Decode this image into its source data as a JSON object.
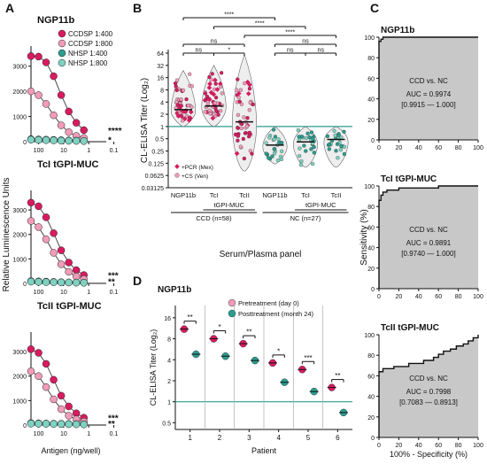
{
  "colors": {
    "magenta": "#D81B60",
    "pink": "#F19CB8",
    "teal": "#2A9D8F",
    "lightteal": "#7FD1C1",
    "gray": "#c8c8c8",
    "axis": "#111111"
  },
  "chart_data": [
    {
      "panel": "A",
      "type": "line",
      "ylabel": "Relative Luminescence Units",
      "xlabel": "Antigen (ng/well)",
      "x_scale": "log",
      "x_ticks": [
        "100",
        "10",
        "1",
        "0.1"
      ],
      "legend": [
        "CCDSP 1:400",
        "CCDSP 1:800",
        "NHSP 1:400",
        "NHSP 1:800"
      ],
      "subplots": [
        {
          "title": "NGP11b",
          "y_ticks": [
            "0",
            "1000",
            "2000",
            "3000"
          ],
          "ylim": [
            0,
            3800
          ],
          "x": [
            200,
            100,
            50,
            25,
            12.5,
            6.25,
            3.125,
            1.56
          ],
          "series": [
            {
              "name": "CCDSP 1:400",
              "values": [
                3400,
                3380,
                3150,
                2600,
                1850,
                1200,
                750,
                460
              ]
            },
            {
              "name": "CCDSP 1:800",
              "values": [
                2000,
                1850,
                1500,
                1050,
                650,
                380,
                230,
                150
              ]
            },
            {
              "name": "NHSP 1:400",
              "values": [
                100,
                90,
                80,
                70,
                60,
                50,
                40,
                30
              ]
            },
            {
              "name": "NHSP 1:800",
              "values": [
                80,
                70,
                60,
                50,
                40,
                35,
                30,
                25
              ]
            }
          ],
          "annotations": [
            "****",
            "*"
          ]
        },
        {
          "title": "TcI tGPI-MUC",
          "y_ticks": [
            "0",
            "1000",
            "2000",
            "3000"
          ],
          "ylim": [
            0,
            3800
          ],
          "x": [
            200,
            100,
            50,
            25,
            12.5,
            6.25,
            3.125,
            1.56
          ],
          "series": [
            {
              "name": "CCDSP 1:400",
              "values": [
                3300,
                3150,
                2700,
                2050,
                1350,
                850,
                540,
                340
              ]
            },
            {
              "name": "CCDSP 1:800",
              "values": [
                2550,
                2300,
                1800,
                1250,
                780,
                470,
                280,
                170
              ]
            },
            {
              "name": "NHSP 1:400",
              "values": [
                90,
                80,
                70,
                60,
                50,
                40,
                35,
                30
              ]
            },
            {
              "name": "NHSP 1:800",
              "values": [
                70,
                60,
                50,
                45,
                40,
                35,
                30,
                25
              ]
            }
          ],
          "annotations": [
            "***",
            "**"
          ]
        },
        {
          "title": "TcII tGPI-MUC",
          "y_ticks": [
            "0",
            "1000",
            "2000",
            "3000"
          ],
          "ylim": [
            0,
            3800
          ],
          "x": [
            200,
            100,
            50,
            25,
            12.5,
            6.25,
            3.125,
            1.56
          ],
          "series": [
            {
              "name": "CCDSP 1:400",
              "values": [
                3100,
                2950,
                2500,
                1850,
                1200,
                760,
                480,
                300
              ]
            },
            {
              "name": "CCDSP 1:800",
              "values": [
                2200,
                2000,
                1550,
                1050,
                650,
                380,
                230,
                140
              ]
            },
            {
              "name": "NHSP 1:400",
              "values": [
                80,
                70,
                60,
                55,
                50,
                45,
                40,
                35
              ]
            },
            {
              "name": "NHSP 1:800",
              "values": [
                60,
                55,
                50,
                45,
                40,
                35,
                30,
                25
              ]
            }
          ],
          "annotations": [
            "***",
            "**"
          ]
        }
      ]
    },
    {
      "panel": "B",
      "type": "scatter",
      "ylabel": "CL-ELISA Titer (Log₂)",
      "xlabel": "Serum/Plasma panel",
      "y_scale": "log2",
      "y_ticks": [
        "64",
        "32",
        "16",
        "8",
        "4",
        "2",
        "1",
        "0.5",
        "0.25",
        "0.125",
        "0.0625",
        "0.03125"
      ],
      "categories": [
        "NGP11b",
        "TcI",
        "TcII",
        "NGP11b",
        "TcI",
        "TcII"
      ],
      "subgroup_label": "tGPI-MUC",
      "groups": [
        {
          "name": "CCD (n=58)",
          "indices": [
            0,
            1,
            2
          ]
        },
        {
          "name": "NC (n=27)",
          "indices": [
            3,
            4,
            5
          ]
        }
      ],
      "medians": [
        2.6,
        3.2,
        1.3,
        0.35,
        0.42,
        0.48
      ],
      "ranges": [
        [
          1,
          24
        ],
        [
          1,
          32
        ],
        [
          0.08,
          60
        ],
        [
          0.12,
          1.0
        ],
        [
          0.1,
          1.0
        ],
        [
          0.1,
          1.0
        ]
      ],
      "legend": [
        "+PCR (Mex)",
        "+CS (Ven)"
      ],
      "cutoff": 1,
      "significance": [
        {
          "from": 0,
          "to": 1,
          "label": "ns"
        },
        {
          "from": 1,
          "to": 2,
          "label": "*"
        },
        {
          "from": 0,
          "to": 2,
          "label": "ns"
        },
        {
          "from": 0,
          "to": 3,
          "label": "****"
        },
        {
          "from": 1,
          "to": 4,
          "label": "****"
        },
        {
          "from": 2,
          "to": 5,
          "label": "****"
        },
        {
          "from": 3,
          "to": 4,
          "label": "ns"
        },
        {
          "from": 4,
          "to": 5,
          "label": "ns"
        },
        {
          "from": 3,
          "to": 5,
          "label": "ns"
        }
      ]
    },
    {
      "panel": "C",
      "type": "line",
      "ylabel": "Sensitivity (%)",
      "xlabel": "100% - Specificity (%)",
      "x_ticks": [
        "0",
        "20",
        "40",
        "60",
        "80",
        "100"
      ],
      "y_ticks": [
        "0",
        "20",
        "40",
        "60",
        "80",
        "100"
      ],
      "subplots": [
        {
          "title": "NGP11b",
          "label": "CCD vs. NC",
          "auc": "AUC = 0.9974",
          "ci": "[0.9915 — 1.000]",
          "roc": [
            [
              0,
              0
            ],
            [
              0,
              96
            ],
            [
              2,
              96
            ],
            [
              2,
              98
            ],
            [
              4,
              98
            ],
            [
              4,
              100
            ],
            [
              100,
              100
            ]
          ]
        },
        {
          "title": "TcI tGPI-MUC",
          "label": "CCD vs. NC",
          "auc": "AUC = 0.9891",
          "ci": "[0.9740 — 1.000]",
          "roc": [
            [
              0,
              0
            ],
            [
              0,
              86
            ],
            [
              2,
              86
            ],
            [
              2,
              91
            ],
            [
              4,
              91
            ],
            [
              4,
              94
            ],
            [
              8,
              94
            ],
            [
              8,
              96
            ],
            [
              20,
              96
            ],
            [
              20,
              98
            ],
            [
              60,
              98
            ],
            [
              60,
              100
            ],
            [
              100,
              100
            ]
          ]
        },
        {
          "title": "TcII tGPI-MUC",
          "label": "CCD vs. NC",
          "auc": "AUC = 0.7998",
          "ci": "[0.7083 — 0.8913]",
          "roc": [
            [
              0,
              0
            ],
            [
              0,
              64
            ],
            [
              4,
              64
            ],
            [
              4,
              67
            ],
            [
              15,
              67
            ],
            [
              15,
              69
            ],
            [
              30,
              69
            ],
            [
              30,
              72
            ],
            [
              45,
              72
            ],
            [
              45,
              75
            ],
            [
              55,
              75
            ],
            [
              55,
              78
            ],
            [
              60,
              78
            ],
            [
              60,
              81
            ],
            [
              65,
              81
            ],
            [
              65,
              84
            ],
            [
              72,
              84
            ],
            [
              72,
              86
            ],
            [
              78,
              86
            ],
            [
              78,
              89
            ],
            [
              85,
              89
            ],
            [
              85,
              91
            ],
            [
              90,
              91
            ],
            [
              90,
              94
            ],
            [
              95,
              94
            ],
            [
              95,
              97
            ],
            [
              100,
              97
            ],
            [
              100,
              100
            ]
          ]
        }
      ]
    },
    {
      "panel": "D",
      "type": "scatter",
      "title": "NGP11b",
      "ylabel": "CL-ELISA Titer (Log₂)",
      "xlabel": "Patient",
      "categories": [
        "1",
        "2",
        "3",
        "4",
        "5",
        "6"
      ],
      "y_ticks": [
        "16",
        "8",
        "4",
        "2",
        "1",
        "0.5"
      ],
      "legend": [
        "Pretreatment (day 0)",
        "Posttreatment (month 24)"
      ],
      "cutoff": 1,
      "series": [
        {
          "name": "Pretreatment (day 0)",
          "values": [
            11,
            8,
            6.8,
            3.6,
            2.9,
            1.6
          ]
        },
        {
          "name": "Posttreatment (month 24)",
          "values": [
            4.8,
            4.5,
            3.9,
            1.9,
            1.4,
            0.7
          ]
        }
      ],
      "annotations": [
        "**",
        "*",
        "**",
        "*",
        "***",
        "**"
      ]
    }
  ]
}
